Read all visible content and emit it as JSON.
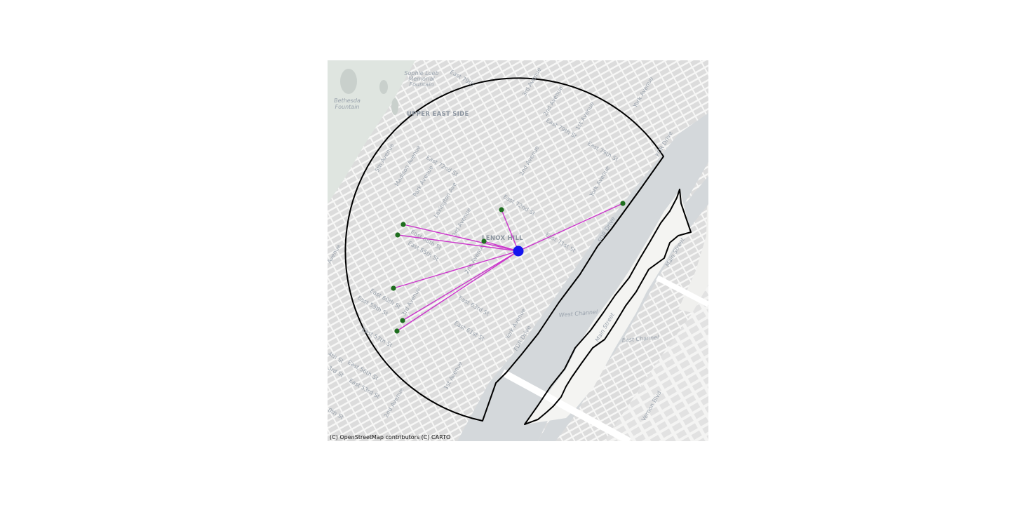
{
  "map": {
    "attribution": "(C) OpenStreetMap contributors (C) CARTO",
    "colors": {
      "land": "#f2f2f0",
      "blocks": "#dcdcdc",
      "park": "#dfe5e0",
      "water": "#d4d8db",
      "boundary": "#000000",
      "center_point": "#1414ee",
      "spoke_points": "#1e6e1e",
      "spoke_lines": "#cc33cc"
    },
    "labels": {
      "neighborhoods": [
        "UPPER EAST SIDE",
        "LENOX HILL"
      ],
      "landmarks": [
        "Sophie Loeb",
        "Memorial",
        "Fountain",
        "Bethesda",
        "Fountain"
      ],
      "water": [
        "West Channel",
        "East Channel"
      ],
      "streets": [
        "East 79th",
        "3rd Avenue",
        "2nd Avenue",
        "East 79th St",
        "1st Avenue",
        "East 79th St",
        "York Avenue",
        "FDR Drive",
        "East 72nd St",
        "5th Avenue",
        "Madison Avenue",
        "Park Avenue",
        "Lexington Ave",
        "3rd Avenue",
        "2nd Avenue",
        "York Avenue",
        "East 72nd St",
        "East 71st St",
        "FDR Drive",
        "East 68th St",
        "East 65th St",
        "2nd Avenue",
        "East 60th St",
        "East 59th St",
        "3rd Avenue",
        "East 63rd St",
        "East 61st St",
        "York Avenue",
        "FDR Drive",
        "East 57th St",
        "4th St",
        "East 56th St",
        "2nd Avenue",
        "East 53rd St",
        "3rd St",
        "1st Avenue",
        "0th St",
        "Main Street",
        "Main Street",
        "Vernon Blvd",
        "Avenue"
      ]
    },
    "center": {
      "name": "center-point"
    },
    "spokes": [
      {
        "name": "point-a"
      },
      {
        "name": "point-b"
      },
      {
        "name": "point-c"
      },
      {
        "name": "point-d"
      },
      {
        "name": "point-e"
      },
      {
        "name": "point-f"
      },
      {
        "name": "point-g"
      },
      {
        "name": "point-h"
      }
    ]
  }
}
